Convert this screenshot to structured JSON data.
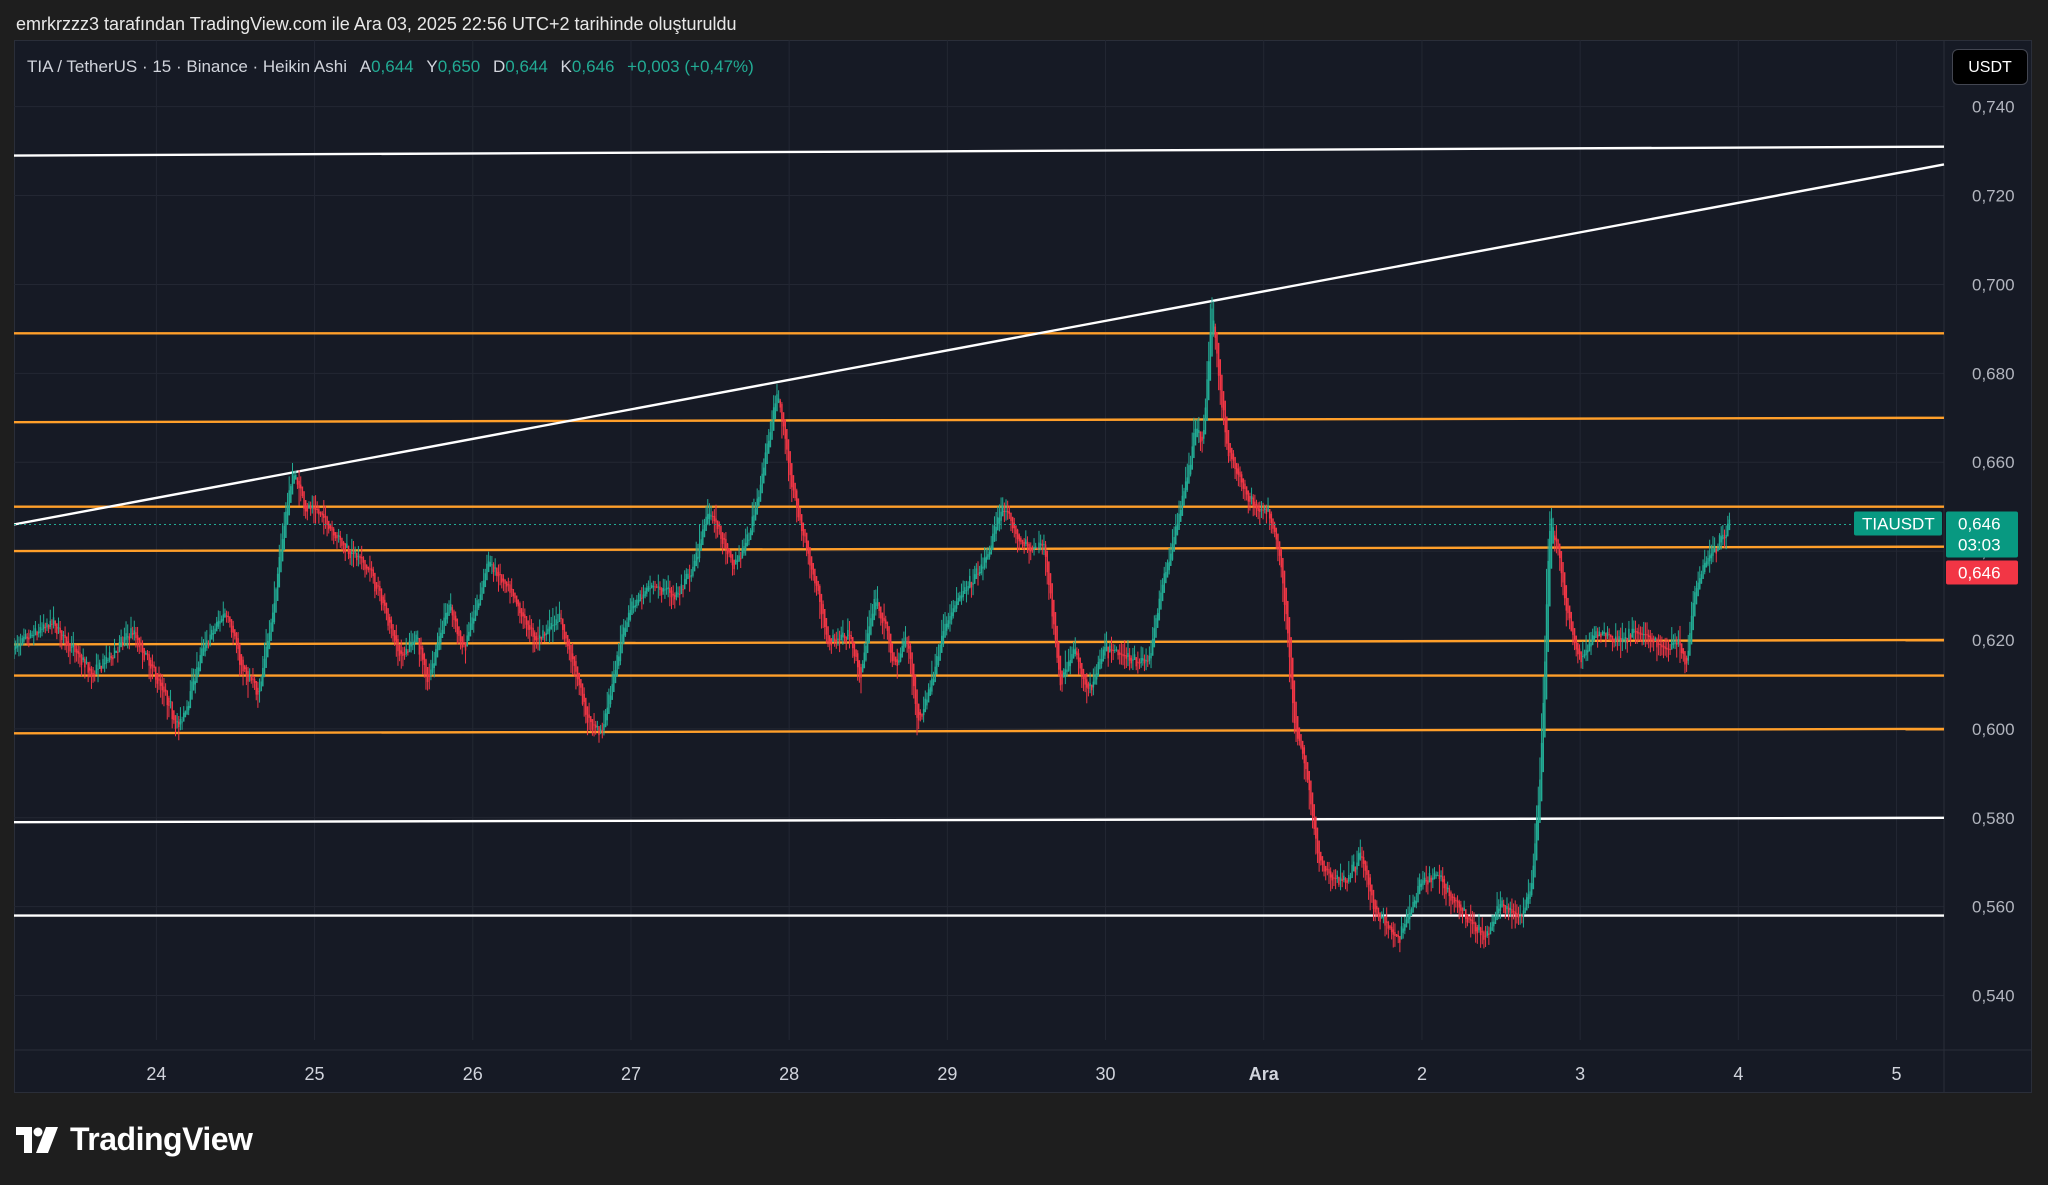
{
  "header": {
    "caption": "emrkrzzz3 tarafından TradingView.com ile Ara 03, 2025 22:56 UTC+2 tarihinde oluşturuldu"
  },
  "legend": {
    "symbol": "TIA / TetherUS · 15 · Binance · Heikin Ashi",
    "open_label": "A",
    "open": "0,644",
    "high_label": "Y",
    "high": "0,650",
    "low_label": "D",
    "low": "0,644",
    "close_label": "K",
    "close": "0,646",
    "change": "+0,003 (+0,47%)"
  },
  "currency_button": "USDT",
  "brand": {
    "name": "TradingView"
  },
  "colors": {
    "background": "#161a25",
    "up": "#22ab94",
    "down": "#f23645",
    "level_line": "#ff9f2a",
    "trend_line": "#ffffff"
  },
  "chart_data": {
    "type": "candlestick",
    "style": "Heikin Ashi",
    "symbol": "TIAUSDT",
    "interval": "15",
    "exchange": "Binance",
    "title": "",
    "xlabel": "",
    "ylabel": "",
    "ylim": [
      0.53,
      0.755
    ],
    "yticks": [
      0.54,
      0.56,
      0.58,
      0.6,
      0.62,
      0.64,
      0.66,
      0.68,
      0.7,
      0.72,
      0.74
    ],
    "ytick_labels": [
      "0,540",
      "0,560",
      "0,580",
      "0,600",
      "0,620",
      "0,640",
      "0,660",
      "0,680",
      "0,700",
      "0,720",
      "0,740"
    ],
    "xrange_days": [
      23.1,
      35.3
    ],
    "xticks": [
      {
        "day": 24,
        "label": "24"
      },
      {
        "day": 25,
        "label": "25"
      },
      {
        "day": 26,
        "label": "26"
      },
      {
        "day": 27,
        "label": "27"
      },
      {
        "day": 28,
        "label": "28"
      },
      {
        "day": 29,
        "label": "29"
      },
      {
        "day": 30,
        "label": "30"
      },
      {
        "day": 31,
        "label": "Ara"
      },
      {
        "day": 32,
        "label": "2"
      },
      {
        "day": 33,
        "label": "3"
      },
      {
        "day": 34,
        "label": "4"
      },
      {
        "day": 35,
        "label": "5"
      }
    ],
    "price_path": [
      [
        23.1,
        0.618
      ],
      [
        23.35,
        0.624
      ],
      [
        23.6,
        0.612
      ],
      [
        23.85,
        0.622
      ],
      [
        24.0,
        0.612
      ],
      [
        24.15,
        0.6
      ],
      [
        24.3,
        0.618
      ],
      [
        24.45,
        0.627
      ],
      [
        24.55,
        0.613
      ],
      [
        24.65,
        0.608
      ],
      [
        24.75,
        0.628
      ],
      [
        24.82,
        0.648
      ],
      [
        24.87,
        0.658
      ],
      [
        24.95,
        0.65
      ],
      [
        25.05,
        0.648
      ],
      [
        25.2,
        0.641
      ],
      [
        25.35,
        0.636
      ],
      [
        25.45,
        0.627
      ],
      [
        25.55,
        0.616
      ],
      [
        25.65,
        0.621
      ],
      [
        25.72,
        0.611
      ],
      [
        25.85,
        0.628
      ],
      [
        25.95,
        0.618
      ],
      [
        26.05,
        0.63
      ],
      [
        26.1,
        0.638
      ],
      [
        26.25,
        0.63
      ],
      [
        26.4,
        0.62
      ],
      [
        26.55,
        0.625
      ],
      [
        26.65,
        0.614
      ],
      [
        26.72,
        0.603
      ],
      [
        26.82,
        0.599
      ],
      [
        26.9,
        0.613
      ],
      [
        27.0,
        0.628
      ],
      [
        27.15,
        0.632
      ],
      [
        27.3,
        0.63
      ],
      [
        27.4,
        0.636
      ],
      [
        27.5,
        0.65
      ],
      [
        27.58,
        0.643
      ],
      [
        27.65,
        0.636
      ],
      [
        27.75,
        0.643
      ],
      [
        27.85,
        0.66
      ],
      [
        27.93,
        0.676
      ],
      [
        28.05,
        0.65
      ],
      [
        28.15,
        0.636
      ],
      [
        28.25,
        0.62
      ],
      [
        28.4,
        0.621
      ],
      [
        28.45,
        0.611
      ],
      [
        28.55,
        0.63
      ],
      [
        28.62,
        0.622
      ],
      [
        28.68,
        0.613
      ],
      [
        28.75,
        0.622
      ],
      [
        28.82,
        0.601
      ],
      [
        28.9,
        0.61
      ],
      [
        29.0,
        0.625
      ],
      [
        29.12,
        0.631
      ],
      [
        29.25,
        0.638
      ],
      [
        29.35,
        0.65
      ],
      [
        29.45,
        0.643
      ],
      [
        29.55,
        0.64
      ],
      [
        29.62,
        0.642
      ],
      [
        29.68,
        0.622
      ],
      [
        29.72,
        0.61
      ],
      [
        29.8,
        0.618
      ],
      [
        29.9,
        0.608
      ],
      [
        30.0,
        0.618
      ],
      [
        30.15,
        0.616
      ],
      [
        30.28,
        0.615
      ],
      [
        30.35,
        0.63
      ],
      [
        30.45,
        0.645
      ],
      [
        30.52,
        0.657
      ],
      [
        30.58,
        0.668
      ],
      [
        30.62,
        0.665
      ],
      [
        30.66,
        0.684
      ],
      [
        30.68,
        0.696
      ],
      [
        30.72,
        0.68
      ],
      [
        30.77,
        0.664
      ],
      [
        30.85,
        0.656
      ],
      [
        30.95,
        0.65
      ],
      [
        31.05,
        0.648
      ],
      [
        31.1,
        0.641
      ],
      [
        31.15,
        0.625
      ],
      [
        31.2,
        0.6
      ],
      [
        31.28,
        0.59
      ],
      [
        31.35,
        0.57
      ],
      [
        31.45,
        0.566
      ],
      [
        31.55,
        0.567
      ],
      [
        31.62,
        0.572
      ],
      [
        31.7,
        0.56
      ],
      [
        31.78,
        0.556
      ],
      [
        31.85,
        0.552
      ],
      [
        31.92,
        0.558
      ],
      [
        32.0,
        0.565
      ],
      [
        32.1,
        0.567
      ],
      [
        32.2,
        0.562
      ],
      [
        32.3,
        0.557
      ],
      [
        32.42,
        0.553
      ],
      [
        32.5,
        0.561
      ],
      [
        32.62,
        0.557
      ],
      [
        32.7,
        0.565
      ],
      [
        32.75,
        0.588
      ],
      [
        32.78,
        0.612
      ],
      [
        32.8,
        0.637
      ],
      [
        32.82,
        0.648
      ],
      [
        32.86,
        0.641
      ],
      [
        32.92,
        0.627
      ],
      [
        33.0,
        0.615
      ],
      [
        33.08,
        0.62
      ],
      [
        33.15,
        0.622
      ],
      [
        33.25,
        0.62
      ],
      [
        33.35,
        0.622
      ],
      [
        33.45,
        0.62
      ],
      [
        33.55,
        0.618
      ],
      [
        33.62,
        0.62
      ],
      [
        33.68,
        0.615
      ],
      [
        33.73,
        0.632
      ],
      [
        33.8,
        0.638
      ],
      [
        33.88,
        0.642
      ],
      [
        33.95,
        0.646
      ]
    ],
    "horizontal_levels": [
      {
        "color": "orange",
        "y_start": 0.65,
        "y_end": 0.65
      },
      {
        "color": "orange",
        "y_start": 0.64,
        "y_end": 0.641
      },
      {
        "color": "orange",
        "y_start": 0.619,
        "y_end": 0.62
      },
      {
        "color": "orange",
        "y_start": 0.612,
        "y_end": 0.612
      },
      {
        "color": "orange",
        "y_start": 0.599,
        "y_end": 0.6
      },
      {
        "color": "orange",
        "y_start": 0.669,
        "y_end": 0.67
      },
      {
        "color": "orange",
        "y_start": 0.689,
        "y_end": 0.689
      },
      {
        "color": "white",
        "y_start": 0.729,
        "y_end": 0.731
      },
      {
        "color": "white",
        "y_start": 0.579,
        "y_end": 0.58
      },
      {
        "color": "white",
        "y_start": 0.558,
        "y_end": 0.558
      }
    ],
    "trend_lines": [
      {
        "color": "white",
        "from": [
          23.1,
          0.646
        ],
        "to": [
          35.3,
          0.727
        ]
      }
    ],
    "last_price": {
      "value": 0.646,
      "label": "TIAUSDT",
      "price_label": "0,646",
      "countdown": "03:03",
      "bid_label": "0,646"
    }
  }
}
